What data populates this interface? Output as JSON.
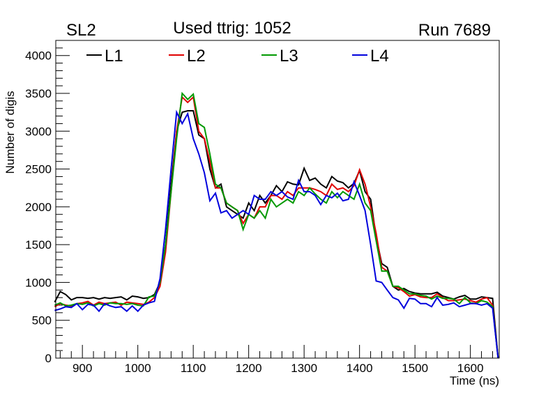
{
  "chart_data": {
    "type": "line",
    "title_left": "SL2",
    "title": "Used ttrig: 1052",
    "title_right": "Run 7689",
    "xlabel": "Time (ns)",
    "ylabel": "Number of digis",
    "xlim": [
      852,
      1652
    ],
    "ylim": [
      0,
      4200
    ],
    "xticks": [
      900,
      1000,
      1100,
      1200,
      1300,
      1400,
      1500,
      1600
    ],
    "yticks": [
      0,
      500,
      1000,
      1500,
      2000,
      2500,
      3000,
      3500,
      4000
    ],
    "grid": false,
    "legend": "top-left-inside",
    "x_start": 850,
    "x_step": 10,
    "series": [
      {
        "name": "L1",
        "color": "#000000",
        "values": [
          740,
          880,
          840,
          770,
          800,
          800,
          790,
          800,
          780,
          800,
          790,
          800,
          810,
          770,
          820,
          810,
          790,
          800,
          840,
          1000,
          1500,
          2300,
          3000,
          3250,
          3270,
          3270,
          2950,
          2900,
          2500,
          2250,
          2300,
          2000,
          1950,
          1900,
          1850,
          2050,
          1950,
          2150,
          2050,
          2150,
          2280,
          2200,
          2330,
          2300,
          2290,
          2510,
          2350,
          2380,
          2300,
          2250,
          2400,
          2340,
          2320,
          2250,
          2310,
          2480,
          2200,
          2100,
          1600,
          1250,
          1200,
          950,
          900,
          920,
          880,
          860,
          850,
          850,
          850,
          870,
          820,
          800,
          780,
          810,
          830,
          780,
          780,
          810,
          800,
          790,
          0
        ]
      },
      {
        "name": "L2",
        "color": "#e00000",
        "values": [
          680,
          720,
          700,
          690,
          720,
          730,
          750,
          700,
          740,
          720,
          730,
          740,
          700,
          740,
          730,
          720,
          710,
          740,
          800,
          950,
          1400,
          2200,
          3000,
          3450,
          3380,
          3450,
          3000,
          2900,
          2600,
          2250,
          2250,
          2050,
          2000,
          1950,
          1780,
          1900,
          1850,
          2000,
          2000,
          2150,
          2150,
          2100,
          2200,
          2150,
          2250,
          2250,
          2250,
          2230,
          2200,
          2150,
          2300,
          2230,
          2250,
          2200,
          2280,
          2490,
          2300,
          2000,
          1650,
          1200,
          1150,
          950,
          930,
          880,
          820,
          840,
          810,
          800,
          800,
          850,
          800,
          760,
          760,
          770,
          780,
          760,
          740,
          780,
          800,
          700,
          0
        ]
      },
      {
        "name": "L3",
        "color": "#009900",
        "values": [
          700,
          730,
          690,
          700,
          720,
          710,
          730,
          690,
          720,
          700,
          730,
          720,
          720,
          710,
          720,
          700,
          690,
          810,
          820,
          1000,
          1500,
          2200,
          2900,
          3500,
          3420,
          3490,
          3100,
          3050,
          2700,
          2300,
          2250,
          2050,
          2000,
          1950,
          1700,
          1900,
          1850,
          1950,
          1850,
          2100,
          2000,
          2050,
          2100,
          2050,
          2200,
          2150,
          2250,
          2170,
          2100,
          2050,
          2200,
          2120,
          2200,
          2150,
          2100,
          2300,
          2050,
          1950,
          1550,
          1150,
          1150,
          950,
          950,
          900,
          850,
          850,
          830,
          820,
          780,
          820,
          790,
          790,
          780,
          720,
          800,
          730,
          720,
          760,
          740,
          680,
          0
        ]
      },
      {
        "name": "L4",
        "color": "#0000dd",
        "values": [
          630,
          650,
          680,
          670,
          720,
          640,
          710,
          700,
          620,
          720,
          690,
          670,
          680,
          620,
          690,
          620,
          700,
          730,
          750,
          1050,
          1700,
          2500,
          3250,
          3100,
          3230,
          2900,
          2700,
          2450,
          2080,
          2180,
          1920,
          1950,
          1850,
          1900,
          1950,
          1900,
          2150,
          2100,
          2100,
          2200,
          2150,
          2200,
          2130,
          2100,
          2350,
          2200,
          2200,
          2150,
          2030,
          2150,
          2120,
          2180,
          2080,
          2100,
          2330,
          2150,
          1950,
          1500,
          1020,
          1000,
          900,
          800,
          770,
          660,
          790,
          780,
          720,
          720,
          680,
          800,
          700,
          710,
          730,
          680,
          700,
          720,
          720,
          700,
          720,
          660,
          0
        ]
      }
    ]
  }
}
